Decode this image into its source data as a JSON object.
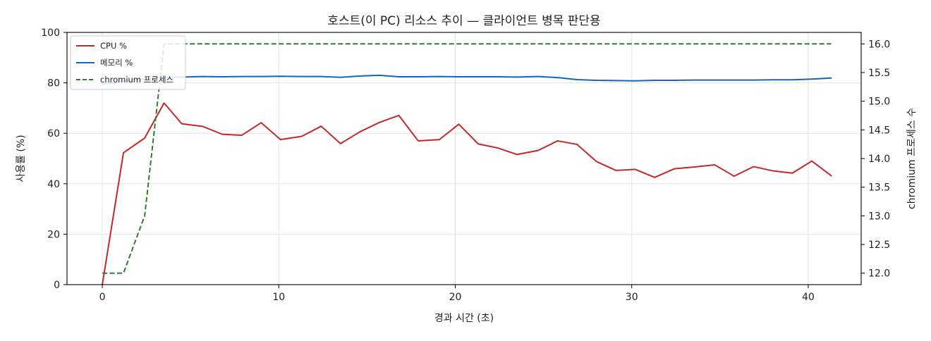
{
  "chart_data": {
    "type": "line",
    "title": "호스트(이 PC) 리소스 추이 — 클라이언트 병목 판단용",
    "xlabel": "경과 시간 (초)",
    "ylabel": "사용률 (%)",
    "y2label": "chromium 프로세스 수",
    "xlim": [
      -2,
      43
    ],
    "ylim": [
      0,
      100
    ],
    "y2lim": [
      11.8,
      16.2
    ],
    "xticks": [
      0,
      10,
      20,
      30,
      40
    ],
    "yticks": [
      0,
      20,
      40,
      60,
      80,
      100
    ],
    "y2ticks": [
      12.0,
      12.5,
      13.0,
      13.5,
      14.0,
      14.5,
      15.0,
      15.5,
      16.0
    ],
    "grid": true,
    "legend_position": "top-left",
    "series": [
      {
        "name": "CPU %",
        "axis": "left",
        "color": "#c62828",
        "style": "solid",
        "x": [
          0,
          1.2,
          2.4,
          3.5,
          4.5,
          5.7,
          6.8,
          7.9,
          9.0,
          10.1,
          11.3,
          12.4,
          13.5,
          14.6,
          15.7,
          16.8,
          17.9,
          19.1,
          20.2,
          21.3,
          22.4,
          23.5,
          24.7,
          25.8,
          26.9,
          28.0,
          29.1,
          30.2,
          31.3,
          32.4,
          33.5,
          34.7,
          35.8,
          36.9,
          38.0,
          39.1,
          40.2,
          41.3
        ],
        "values": [
          0,
          52.3,
          58.1,
          72.0,
          63.8,
          62.7,
          59.6,
          59.2,
          64.2,
          57.5,
          58.8,
          62.8,
          55.9,
          60.6,
          64.3,
          67.1,
          57.0,
          57.5,
          63.6,
          55.8,
          54.2,
          51.6,
          53.2,
          57.0,
          55.6,
          48.8,
          45.3,
          45.7,
          42.5,
          45.9,
          46.6,
          47.5,
          43.0,
          46.8,
          45.1,
          44.2,
          49.0,
          43.2
        ]
      },
      {
        "name": "메모리 %",
        "axis": "left",
        "color": "#1565c0",
        "style": "solid",
        "x": [
          0,
          1.2,
          2.4,
          3.5,
          4.5,
          5.7,
          6.8,
          7.9,
          9.0,
          10.1,
          11.3,
          12.4,
          13.5,
          14.6,
          15.7,
          16.8,
          17.9,
          19.1,
          20.2,
          21.3,
          22.4,
          23.5,
          24.7,
          25.8,
          26.9,
          28.0,
          29.1,
          30.2,
          31.3,
          32.4,
          33.5,
          34.7,
          35.8,
          36.9,
          38.0,
          39.1,
          40.2,
          41.3
        ],
        "values": [
          79.5,
          80.8,
          81.5,
          82.1,
          82.3,
          82.5,
          82.4,
          82.5,
          82.5,
          82.6,
          82.5,
          82.5,
          82.2,
          82.7,
          83.0,
          82.4,
          82.4,
          82.5,
          82.4,
          82.4,
          82.4,
          82.3,
          82.5,
          82.1,
          81.3,
          81.0,
          80.9,
          80.8,
          81.0,
          81.0,
          81.1,
          81.1,
          81.1,
          81.1,
          81.2,
          81.2,
          81.5,
          81.9
        ]
      },
      {
        "name": "chromium 프로세스",
        "axis": "right",
        "color": "#2e7d32",
        "style": "dashed",
        "x": [
          0,
          1.2,
          2.4,
          3.5,
          4.5,
          5.7,
          6.8,
          7.9,
          9.0,
          10.1,
          11.3,
          12.4,
          13.5,
          14.6,
          15.7,
          16.8,
          17.9,
          19.1,
          20.2,
          21.3,
          22.4,
          23.5,
          24.7,
          25.8,
          26.9,
          28.0,
          29.1,
          30.2,
          31.3,
          32.4,
          33.5,
          34.7,
          35.8,
          36.9,
          38.0,
          39.1,
          40.2,
          41.3
        ],
        "values": [
          12,
          12,
          13,
          16,
          16,
          16,
          16,
          16,
          16,
          16,
          16,
          16,
          16,
          16,
          16,
          16,
          16,
          16,
          16,
          16,
          16,
          16,
          16,
          16,
          16,
          16,
          16,
          16,
          16,
          16,
          16,
          16,
          16,
          16,
          16,
          16,
          16,
          16
        ]
      }
    ]
  }
}
